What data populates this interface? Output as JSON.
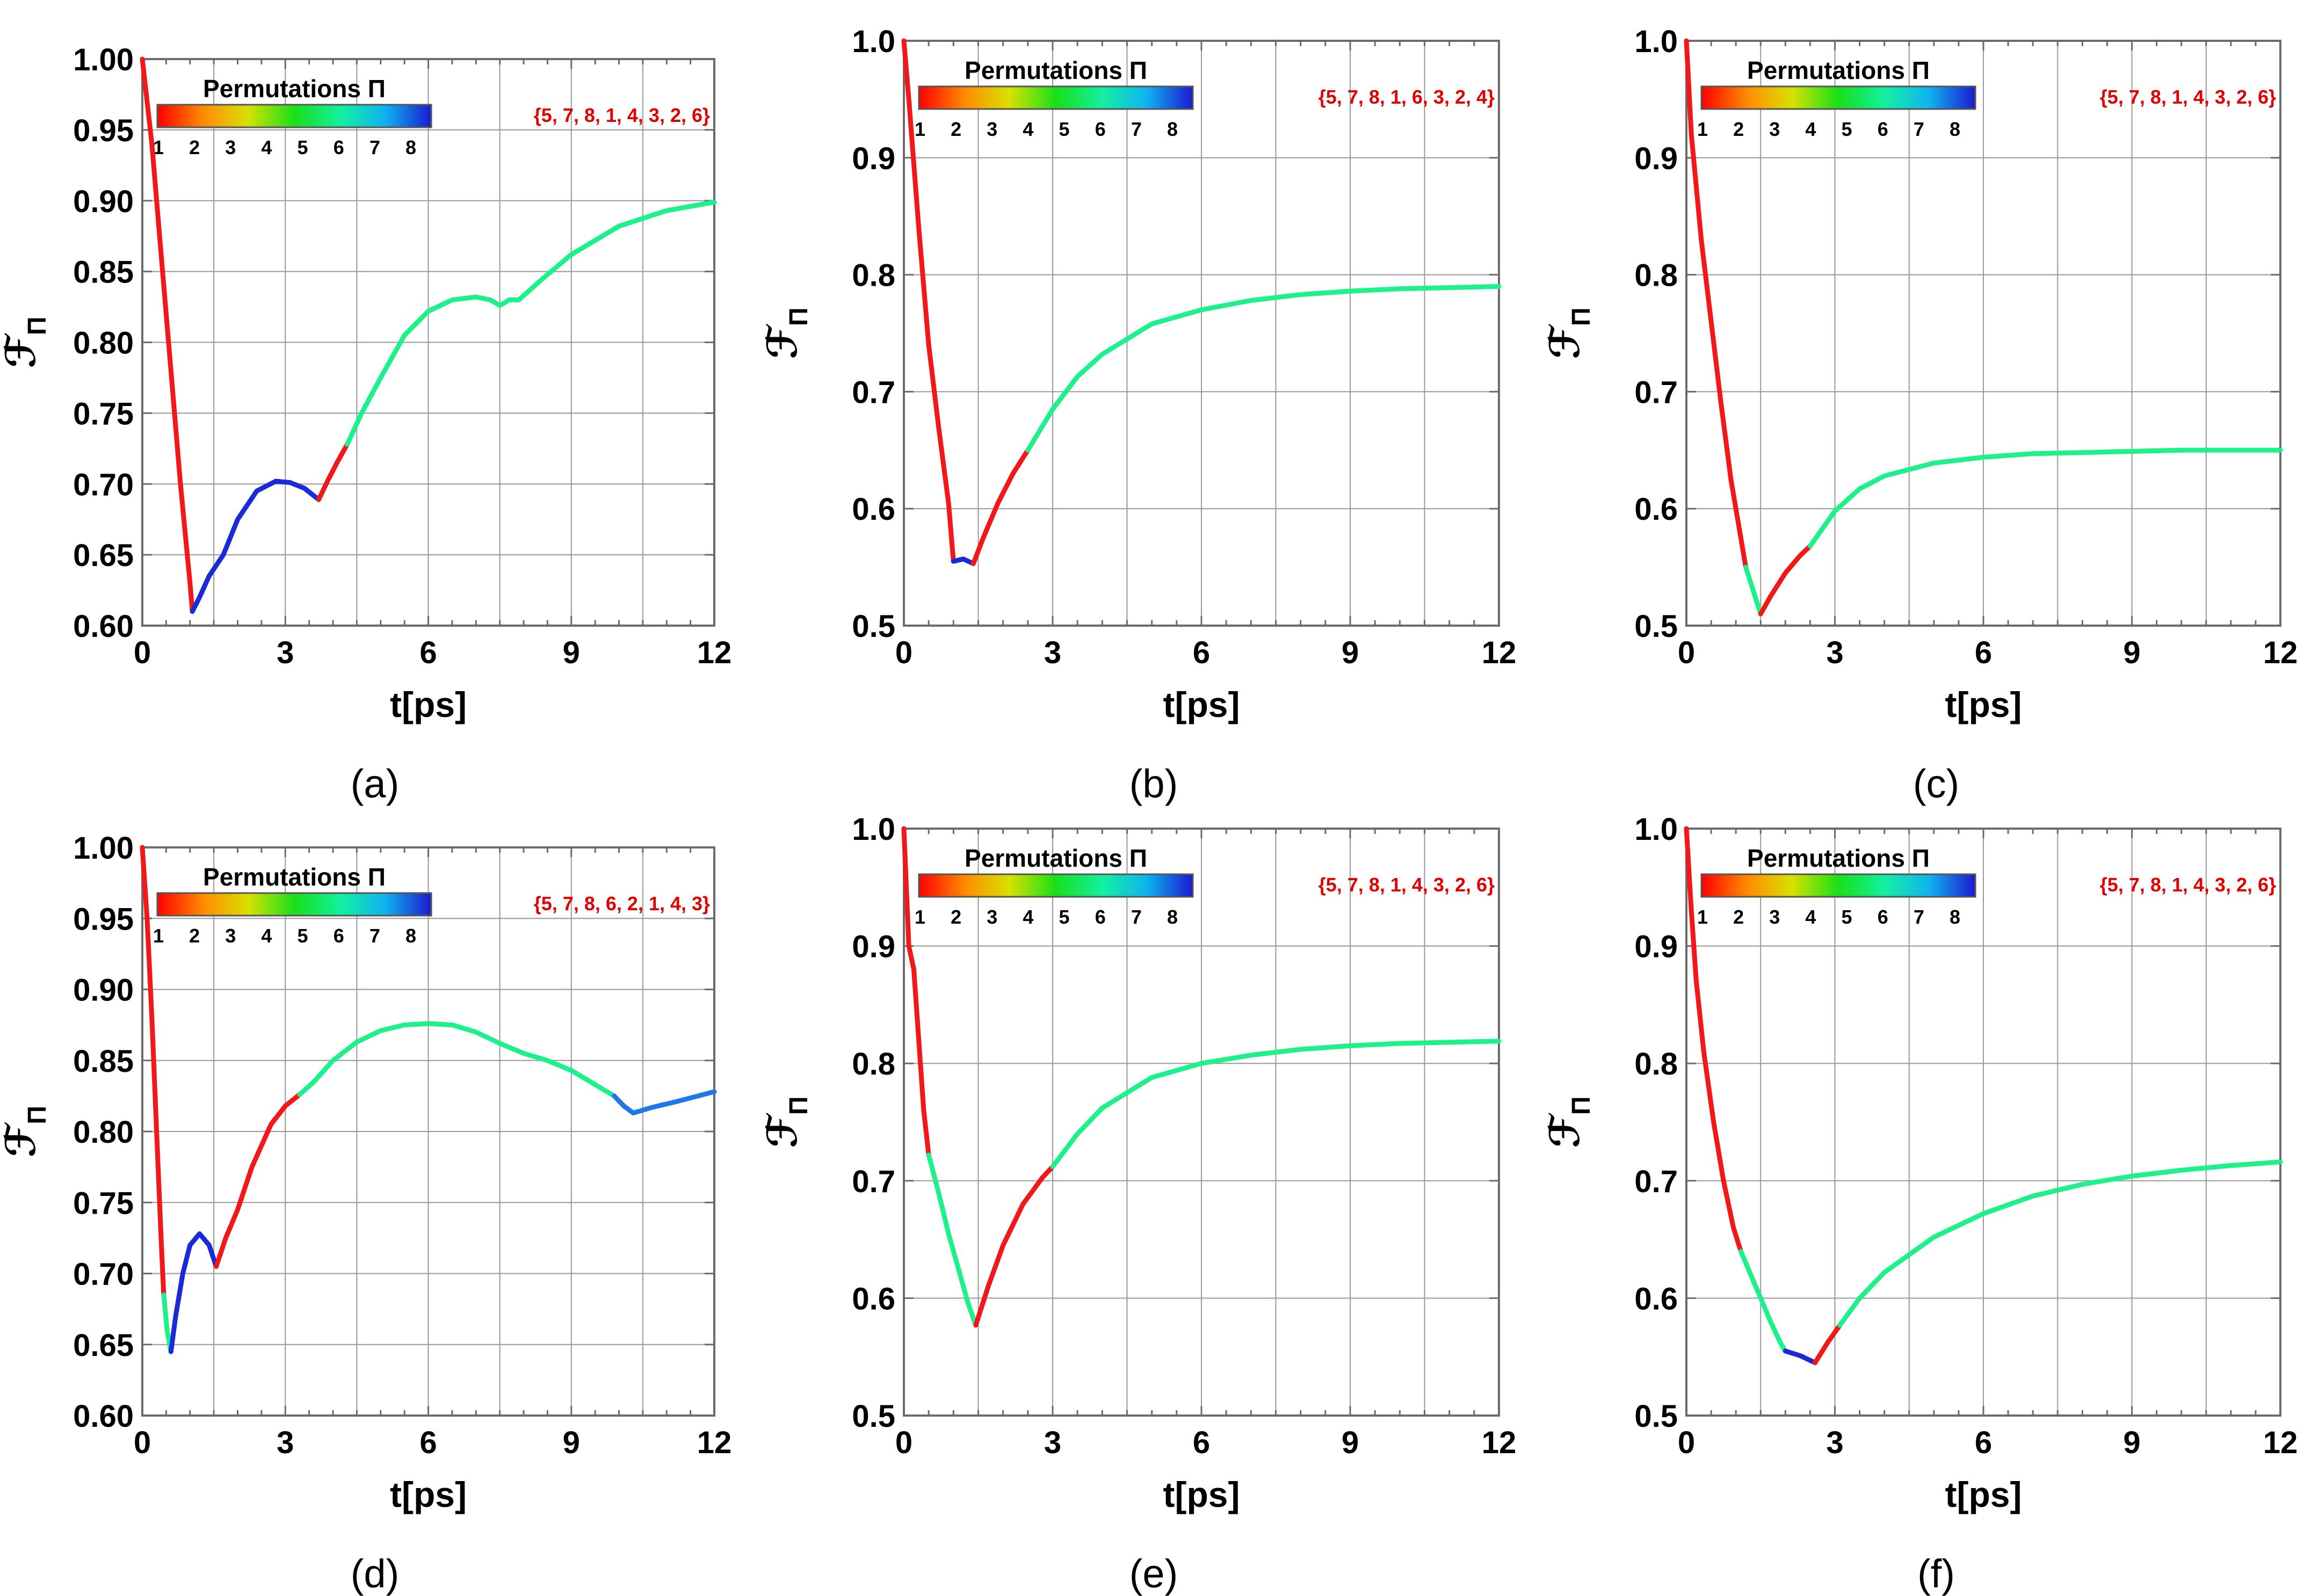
{
  "figure": {
    "colorbar_title": "Permutations Π",
    "colorbar_ticks": [
      "1",
      "2",
      "3",
      "4",
      "5",
      "6",
      "7",
      "8"
    ],
    "xlabel": "t[ps]",
    "ylabel_symbol": "ℱ",
    "ylabel_sub": "Π",
    "colors": {
      "red": "#f01818",
      "green": "#1ef08c",
      "blue": "#1a2ad6",
      "lightblue": "#1f78e6",
      "annotation": "#e00000",
      "grid": "#999999",
      "frame": "#6b6b6b"
    }
  },
  "chart_data": [
    {
      "type": "line",
      "panel_label": "(a)",
      "annotation": "{5, 7, 8, 1, 4, 3, 2, 6}",
      "xlim": [
        0,
        12
      ],
      "ylim": [
        0.6,
        1.0
      ],
      "xticks": [
        "0",
        "3",
        "6",
        "9",
        "12"
      ],
      "yticks": [
        "0.60",
        "0.65",
        "0.70",
        "0.75",
        "0.80",
        "0.85",
        "0.90",
        "0.95",
        "1.00"
      ],
      "series": [
        {
          "color": "red",
          "points": [
            [
              0,
              1.0
            ],
            [
              0.2,
              0.94
            ],
            [
              0.4,
              0.86
            ],
            [
              0.6,
              0.78
            ],
            [
              0.8,
              0.7
            ],
            [
              1.0,
              0.63
            ],
            [
              1.05,
              0.61
            ]
          ]
        },
        {
          "color": "blue",
          "points": [
            [
              1.05,
              0.61
            ],
            [
              1.2,
              0.62
            ],
            [
              1.4,
              0.635
            ],
            [
              1.7,
              0.65
            ],
            [
              2.0,
              0.675
            ],
            [
              2.4,
              0.695
            ],
            [
              2.8,
              0.702
            ],
            [
              3.1,
              0.701
            ],
            [
              3.4,
              0.697
            ],
            [
              3.7,
              0.689
            ]
          ]
        },
        {
          "color": "red",
          "points": [
            [
              3.7,
              0.689
            ],
            [
              3.9,
              0.703
            ],
            [
              4.1,
              0.716
            ],
            [
              4.3,
              0.728
            ]
          ]
        },
        {
          "color": "green",
          "points": [
            [
              4.3,
              0.728
            ],
            [
              4.6,
              0.75
            ],
            [
              5.0,
              0.775
            ],
            [
              5.5,
              0.805
            ],
            [
              6.0,
              0.822
            ],
            [
              6.5,
              0.83
            ],
            [
              7.0,
              0.832
            ],
            [
              7.3,
              0.83
            ],
            [
              7.5,
              0.826
            ],
            [
              7.7,
              0.83
            ],
            [
              7.9,
              0.83
            ],
            [
              8.4,
              0.845
            ],
            [
              9.0,
              0.862
            ],
            [
              10.0,
              0.882
            ],
            [
              11.0,
              0.893
            ],
            [
              12.0,
              0.899
            ]
          ]
        }
      ]
    },
    {
      "type": "line",
      "panel_label": "(b)",
      "annotation": "{5, 7, 8, 1, 6, 3, 2, 4}",
      "xlim": [
        0,
        12
      ],
      "ylim": [
        0.5,
        1.0
      ],
      "xticks": [
        "0",
        "3",
        "6",
        "9",
        "12"
      ],
      "yticks": [
        "0.5",
        "0.6",
        "0.7",
        "0.8",
        "0.9",
        "1.0"
      ],
      "series": [
        {
          "color": "red",
          "points": [
            [
              0,
              1.0
            ],
            [
              0.1,
              0.95
            ],
            [
              0.3,
              0.84
            ],
            [
              0.5,
              0.74
            ],
            [
              0.7,
              0.67
            ],
            [
              0.9,
              0.605
            ],
            [
              1.0,
              0.555
            ]
          ]
        },
        {
          "color": "blue",
          "points": [
            [
              1.0,
              0.555
            ],
            [
              1.2,
              0.557
            ],
            [
              1.4,
              0.553
            ]
          ]
        },
        {
          "color": "red",
          "points": [
            [
              1.4,
              0.553
            ],
            [
              1.6,
              0.575
            ],
            [
              1.9,
              0.605
            ],
            [
              2.2,
              0.63
            ],
            [
              2.5,
              0.65
            ]
          ]
        },
        {
          "color": "green",
          "points": [
            [
              2.5,
              0.65
            ],
            [
              3.0,
              0.685
            ],
            [
              3.5,
              0.713
            ],
            [
              4.0,
              0.732
            ],
            [
              5.0,
              0.758
            ],
            [
              6.0,
              0.77
            ],
            [
              7.0,
              0.778
            ],
            [
              8.0,
              0.783
            ],
            [
              9.0,
              0.786
            ],
            [
              10.0,
              0.788
            ],
            [
              11.0,
              0.789
            ],
            [
              12.0,
              0.79
            ]
          ]
        }
      ]
    },
    {
      "type": "line",
      "panel_label": "(c)",
      "annotation": "{5, 7, 8, 1, 4, 3, 2, 6}",
      "xlim": [
        0,
        12
      ],
      "ylim": [
        0.5,
        1.0
      ],
      "xticks": [
        "0",
        "3",
        "6",
        "9",
        "12"
      ],
      "yticks": [
        "0.5",
        "0.6",
        "0.7",
        "0.8",
        "0.9",
        "1.0"
      ],
      "series": [
        {
          "color": "red",
          "points": [
            [
              0,
              1.0
            ],
            [
              0.1,
              0.92
            ],
            [
              0.3,
              0.83
            ],
            [
              0.5,
              0.76
            ],
            [
              0.7,
              0.69
            ],
            [
              0.9,
              0.625
            ],
            [
              1.1,
              0.575
            ],
            [
              1.2,
              0.55
            ]
          ]
        },
        {
          "color": "green",
          "points": [
            [
              1.2,
              0.55
            ],
            [
              1.35,
              0.53
            ],
            [
              1.5,
              0.51
            ]
          ]
        },
        {
          "color": "red",
          "points": [
            [
              1.5,
              0.51
            ],
            [
              1.7,
              0.525
            ],
            [
              2.0,
              0.545
            ],
            [
              2.3,
              0.56
            ],
            [
              2.5,
              0.568
            ]
          ]
        },
        {
          "color": "green",
          "points": [
            [
              2.5,
              0.568
            ],
            [
              3.0,
              0.598
            ],
            [
              3.5,
              0.617
            ],
            [
              4.0,
              0.628
            ],
            [
              5.0,
              0.639
            ],
            [
              6.0,
              0.644
            ],
            [
              7.0,
              0.647
            ],
            [
              8.0,
              0.648
            ],
            [
              9.0,
              0.649
            ],
            [
              10.0,
              0.65
            ],
            [
              12.0,
              0.65
            ]
          ]
        }
      ]
    },
    {
      "type": "line",
      "panel_label": "(d)",
      "annotation": "{5, 7, 8, 6, 2, 1, 4, 3}",
      "xlim": [
        0,
        12
      ],
      "ylim": [
        0.6,
        1.0
      ],
      "xticks": [
        "0",
        "3",
        "6",
        "9",
        "12"
      ],
      "yticks": [
        "0.60",
        "0.65",
        "0.70",
        "0.75",
        "0.80",
        "0.85",
        "0.90",
        "0.95",
        "1.00"
      ],
      "series": [
        {
          "color": "red",
          "points": [
            [
              0,
              1.0
            ],
            [
              0.1,
              0.95
            ],
            [
              0.2,
              0.88
            ],
            [
              0.3,
              0.8
            ],
            [
              0.4,
              0.72
            ],
            [
              0.45,
              0.685
            ]
          ]
        },
        {
          "color": "green",
          "points": [
            [
              0.45,
              0.685
            ],
            [
              0.52,
              0.66
            ],
            [
              0.6,
              0.645
            ]
          ]
        },
        {
          "color": "blue",
          "points": [
            [
              0.6,
              0.645
            ],
            [
              0.7,
              0.67
            ],
            [
              0.85,
              0.7
            ],
            [
              1.0,
              0.72
            ],
            [
              1.2,
              0.728
            ],
            [
              1.4,
              0.72
            ],
            [
              1.55,
              0.705
            ]
          ]
        },
        {
          "color": "red",
          "points": [
            [
              1.55,
              0.705
            ],
            [
              1.75,
              0.725
            ],
            [
              2.0,
              0.745
            ],
            [
              2.3,
              0.775
            ],
            [
              2.7,
              0.805
            ],
            [
              3.0,
              0.818
            ],
            [
              3.3,
              0.826
            ]
          ]
        },
        {
          "color": "green",
          "points": [
            [
              3.3,
              0.826
            ],
            [
              3.6,
              0.835
            ],
            [
              4.0,
              0.85
            ],
            [
              4.5,
              0.863
            ],
            [
              5.0,
              0.871
            ],
            [
              5.5,
              0.875
            ],
            [
              6.0,
              0.876
            ],
            [
              6.5,
              0.875
            ],
            [
              7.0,
              0.87
            ],
            [
              7.5,
              0.862
            ],
            [
              8.0,
              0.855
            ],
            [
              8.5,
              0.85
            ],
            [
              9.0,
              0.843
            ],
            [
              9.5,
              0.833
            ],
            [
              9.9,
              0.825
            ]
          ]
        },
        {
          "color": "lightblue",
          "points": [
            [
              9.9,
              0.825
            ],
            [
              10.1,
              0.818
            ],
            [
              10.3,
              0.813
            ],
            [
              10.7,
              0.817
            ],
            [
              11.2,
              0.821
            ],
            [
              12.0,
              0.828
            ]
          ]
        }
      ]
    },
    {
      "type": "line",
      "panel_label": "(e)",
      "annotation": "{5, 7, 8, 1, 4, 3, 2, 6}",
      "xlim": [
        0,
        12
      ],
      "ylim": [
        0.5,
        1.0
      ],
      "xticks": [
        "0",
        "3",
        "6",
        "9",
        "12"
      ],
      "yticks": [
        "0.5",
        "0.6",
        "0.7",
        "0.8",
        "0.9",
        "1.0"
      ],
      "series": [
        {
          "color": "red",
          "points": [
            [
              0,
              1.0
            ],
            [
              0.1,
              0.9
            ],
            [
              0.2,
              0.88
            ],
            [
              0.3,
              0.82
            ],
            [
              0.4,
              0.76
            ],
            [
              0.5,
              0.722
            ]
          ]
        },
        {
          "color": "green",
          "points": [
            [
              0.5,
              0.722
            ],
            [
              0.7,
              0.69
            ],
            [
              0.9,
              0.655
            ],
            [
              1.1,
              0.625
            ],
            [
              1.3,
              0.595
            ],
            [
              1.45,
              0.577
            ]
          ]
        },
        {
          "color": "red",
          "points": [
            [
              1.45,
              0.577
            ],
            [
              1.7,
              0.61
            ],
            [
              2.0,
              0.645
            ],
            [
              2.4,
              0.68
            ],
            [
              2.8,
              0.703
            ],
            [
              3.0,
              0.712
            ]
          ]
        },
        {
          "color": "green",
          "points": [
            [
              3.0,
              0.712
            ],
            [
              3.5,
              0.74
            ],
            [
              4.0,
              0.762
            ],
            [
              5.0,
              0.788
            ],
            [
              6.0,
              0.8
            ],
            [
              7.0,
              0.807
            ],
            [
              8.0,
              0.812
            ],
            [
              9.0,
              0.815
            ],
            [
              10.0,
              0.817
            ],
            [
              11.0,
              0.818
            ],
            [
              12.0,
              0.819
            ]
          ]
        }
      ]
    },
    {
      "type": "line",
      "panel_label": "(f)",
      "annotation": "{5, 7, 8, 1, 4, 3, 2, 6}",
      "xlim": [
        0,
        12
      ],
      "ylim": [
        0.5,
        1.0
      ],
      "xticks": [
        "0",
        "3",
        "6",
        "9",
        "12"
      ],
      "yticks": [
        "0.5",
        "0.6",
        "0.7",
        "0.8",
        "0.9",
        "1.0"
      ],
      "series": [
        {
          "color": "red",
          "points": [
            [
              0,
              1.0
            ],
            [
              0.1,
              0.93
            ],
            [
              0.2,
              0.87
            ],
            [
              0.35,
              0.81
            ],
            [
              0.55,
              0.75
            ],
            [
              0.75,
              0.7
            ],
            [
              0.95,
              0.66
            ],
            [
              1.1,
              0.64
            ]
          ]
        },
        {
          "color": "green",
          "points": [
            [
              1.1,
              0.64
            ],
            [
              1.3,
              0.62
            ],
            [
              1.5,
              0.6
            ],
            [
              1.7,
              0.58
            ],
            [
              1.9,
              0.562
            ],
            [
              2.0,
              0.555
            ]
          ]
        },
        {
          "color": "blue",
          "points": [
            [
              2.0,
              0.555
            ],
            [
              2.3,
              0.551
            ],
            [
              2.6,
              0.545
            ]
          ]
        },
        {
          "color": "red",
          "points": [
            [
              2.6,
              0.545
            ],
            [
              2.85,
              0.562
            ],
            [
              3.1,
              0.577
            ]
          ]
        },
        {
          "color": "green",
          "points": [
            [
              3.1,
              0.577
            ],
            [
              3.5,
              0.6
            ],
            [
              4.0,
              0.622
            ],
            [
              5.0,
              0.652
            ],
            [
              6.0,
              0.672
            ],
            [
              7.0,
              0.687
            ],
            [
              8.0,
              0.697
            ],
            [
              9.0,
              0.704
            ],
            [
              10.0,
              0.709
            ],
            [
              11.0,
              0.713
            ],
            [
              12.0,
              0.716
            ]
          ]
        }
      ]
    }
  ]
}
